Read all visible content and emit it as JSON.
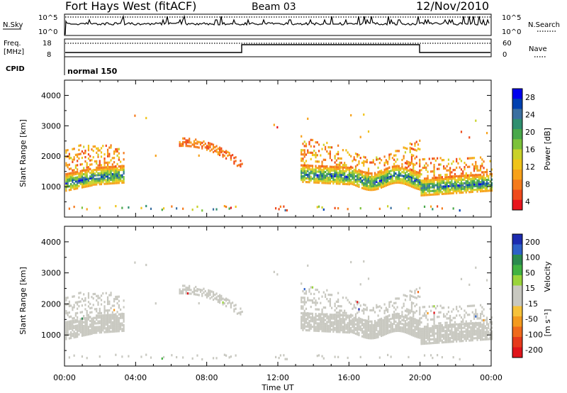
{
  "header": {
    "title": "Fort Hays West (fitACF)",
    "beam": "Beam 03",
    "date": "12/Nov/2010"
  },
  "strip_panels": {
    "nsky_label": "N.Sky",
    "nsky_ticks": [
      "10^5",
      "10^0"
    ],
    "nsearch_label": "N.Search",
    "nsearch_ticks": [
      "10^5",
      "10^0"
    ],
    "freq_label_line1": "Freq.",
    "freq_label_line2": "[MHz]",
    "freq_ticks": [
      "18",
      "8"
    ],
    "nave_label": "Nave",
    "nave_ticks": [
      "60",
      "0"
    ],
    "cpid_label": "CPID",
    "cpid_value": "normal 150"
  },
  "axes": {
    "xlabel": "Time UT",
    "xticks": [
      "00:00",
      "04:00",
      "08:00",
      "12:00",
      "16:00",
      "20:00",
      "00:00"
    ],
    "ylabel": "Slant Range [km]",
    "yticks": [
      "4000",
      "3000",
      "2000",
      "1000"
    ]
  },
  "colorbars": {
    "power": {
      "label": "Power [dB]",
      "ticks": [
        "28",
        "24",
        "20",
        "16",
        "12",
        "8",
        "4"
      ],
      "colors": [
        "#0000ee",
        "#0040b0",
        "#3a6fa0",
        "#2f8f6f",
        "#49a84a",
        "#7cc23a",
        "#c9d22a",
        "#f0c419",
        "#f7a11a",
        "#f57a1b",
        "#ef4a1c",
        "#e8141d"
      ]
    },
    "velocity": {
      "label": "Velocity",
      "units": "[m s⁻¹]",
      "ticks": [
        "200",
        "100",
        "50",
        "15",
        "-15",
        "-50",
        "-100",
        "-200"
      ],
      "colors": [
        "#1c2bb0",
        "#2e61c8",
        "#2b8a4e",
        "#41b241",
        "#9ad43a",
        "#c8c8c0",
        "#c8c8c0",
        "#f6c23a",
        "#f39a1e",
        "#ef6a1c",
        "#e63a1c",
        "#e0141a"
      ]
    }
  },
  "chart_data": [
    {
      "type": "heatmap",
      "panel": "power",
      "x_unit": "hours UT",
      "xlim": [
        0,
        24
      ],
      "ylim": [
        0,
        4500
      ],
      "ylabel": "Slant Range [km]",
      "xlabel": "Time UT",
      "colorbar_range_db": [
        0,
        30
      ],
      "echo_regions": [
        {
          "t_start": 0.0,
          "t_end": 3.3,
          "r_low": 900,
          "r_high": 2600,
          "peak_db": 24
        },
        {
          "t_start": 6.5,
          "t_end": 10.0,
          "r_low": 1600,
          "r_high": 2600,
          "peak_db": 8
        },
        {
          "t_start": 13.2,
          "t_end": 20.0,
          "r_low": 950,
          "r_high": 2800,
          "peak_db": 28
        },
        {
          "t_start": 20.0,
          "t_end": 24.0,
          "r_low": 800,
          "r_high": 2300,
          "peak_db": 24
        }
      ]
    },
    {
      "type": "heatmap",
      "panel": "velocity",
      "x_unit": "hours UT",
      "xlim": [
        0,
        24
      ],
      "ylim": [
        0,
        4500
      ],
      "ylabel": "Slant Range [km]",
      "xlabel": "Time UT",
      "colorbar_range_ms": [
        -200,
        200
      ],
      "note_values": "mostly ground-scatter grey (-15 to 15 m/s) with sparse colored points",
      "echo_regions": [
        {
          "t_start": 0.0,
          "t_end": 3.3,
          "r_low": 900,
          "r_high": 2600
        },
        {
          "t_start": 6.5,
          "t_end": 10.0,
          "r_low": 1600,
          "r_high": 2600
        },
        {
          "t_start": 13.2,
          "t_end": 20.0,
          "r_low": 950,
          "r_high": 2800
        },
        {
          "t_start": 20.0,
          "t_end": 24.0,
          "r_low": 800,
          "r_high": 2300
        }
      ]
    }
  ]
}
